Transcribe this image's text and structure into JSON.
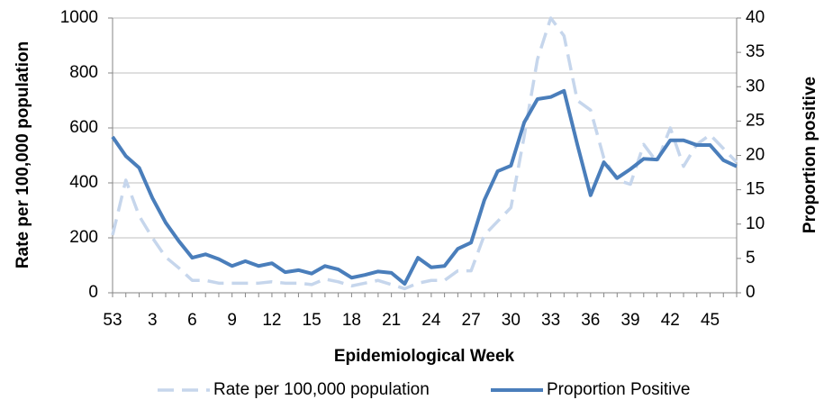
{
  "chart_data": {
    "type": "line",
    "ylabel": "Rate per 100,000 population",
    "y2label": "Proportion positive",
    "xlabel": "Epidemiological Week",
    "categories": [
      "53",
      null,
      null,
      "3",
      null,
      null,
      "6",
      null,
      null,
      "9",
      null,
      null,
      "12",
      null,
      null,
      "15",
      null,
      null,
      "18",
      null,
      null,
      "21",
      null,
      null,
      "24",
      null,
      null,
      "27",
      null,
      null,
      "30",
      null,
      null,
      "33",
      null,
      null,
      "36",
      null,
      null,
      "39",
      null,
      null,
      "42",
      null,
      null,
      "45",
      null,
      null
    ],
    "series": [
      {
        "name": "Rate per 100,000 population",
        "color": "#c6d6ec",
        "line_style": "dashed",
        "values": [
          210,
          410,
          280,
          200,
          130,
          90,
          45,
          45,
          35,
          35,
          35,
          35,
          40,
          35,
          35,
          30,
          50,
          40,
          25,
          35,
          45,
          30,
          15,
          35,
          45,
          45,
          80,
          80,
          210,
          260,
          310,
          570,
          850,
          1000,
          935,
          700,
          665,
          490,
          410,
          395,
          540,
          475,
          600,
          460,
          540,
          575,
          525,
          475
        ]
      },
      {
        "name": "Proportion Positive",
        "color": "#4a7ebb",
        "line_style": "solid",
        "axis": "y2",
        "values": [
          22.7,
          19.9,
          18.2,
          13.8,
          10.2,
          7.5,
          5.1,
          5.6,
          4.9,
          3.9,
          4.6,
          3.9,
          4.3,
          3.0,
          3.3,
          2.8,
          3.9,
          3.4,
          2.2,
          2.6,
          3.1,
          2.9,
          1.3,
          5.1,
          3.7,
          3.9,
          6.4,
          7.3,
          13.5,
          17.7,
          18.5,
          24.8,
          28.2,
          28.5,
          29.4,
          21.6,
          14.2,
          19.0,
          16.7,
          18.0,
          19.5,
          19.4,
          22.2,
          22.2,
          21.5,
          21.5,
          19.3,
          18.4
        ]
      }
    ],
    "ylim": [
      0,
      1000
    ],
    "yticks": [
      0,
      200,
      400,
      600,
      800,
      1000
    ],
    "y2lim": [
      0,
      40
    ],
    "y2ticks": [
      0,
      5,
      10,
      15,
      20,
      25,
      30,
      35,
      40
    ],
    "grid": true,
    "legend": "bottom"
  }
}
